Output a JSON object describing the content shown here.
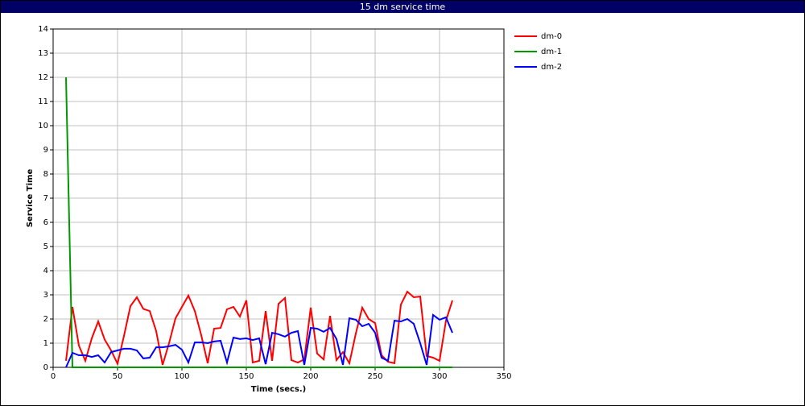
{
  "chart_data": {
    "type": "line",
    "title": "15 dm service time",
    "xlabel": "Time (secs.)",
    "ylabel": "Service Time",
    "x": [
      10,
      15,
      20,
      25,
      30,
      35,
      40,
      45,
      50,
      55,
      60,
      65,
      70,
      75,
      80,
      85,
      90,
      95,
      100,
      105,
      110,
      115,
      120,
      125,
      130,
      135,
      140,
      145,
      150,
      155,
      160,
      165,
      170,
      175,
      180,
      185,
      190,
      195,
      200,
      205,
      210,
      215,
      220,
      225,
      230,
      235,
      240,
      245,
      250,
      255,
      260,
      265,
      270,
      275,
      280,
      285,
      290,
      295,
      300,
      305,
      310
    ],
    "series": [
      {
        "name": "dm-0",
        "color": "#ff0000",
        "values": [
          0.27,
          2.5,
          0.9,
          0.27,
          1.2,
          1.9,
          1.15,
          0.7,
          0.15,
          1.3,
          2.53,
          2.9,
          2.42,
          2.33,
          1.5,
          0.1,
          1.0,
          2.03,
          2.5,
          2.97,
          2.33,
          1.33,
          0.17,
          1.6,
          1.63,
          2.4,
          2.5,
          2.1,
          2.77,
          0.2,
          0.27,
          2.33,
          0.27,
          2.63,
          2.87,
          0.3,
          0.2,
          0.33,
          2.47,
          0.57,
          0.33,
          2.13,
          0.3,
          0.63,
          0.17,
          1.4,
          2.47,
          2.0,
          1.83,
          0.5,
          0.23,
          0.17,
          2.6,
          3.13,
          2.9,
          2.93,
          0.47,
          0.4,
          0.27,
          1.93,
          2.77
        ]
      },
      {
        "name": "dm-1",
        "color": "#009900",
        "values": [
          12,
          0,
          0,
          0,
          0,
          0,
          0,
          0,
          0,
          0,
          0,
          0,
          0,
          0,
          0,
          0,
          0,
          0,
          0,
          0,
          0,
          0,
          0,
          0,
          0,
          0,
          0,
          0,
          0,
          0,
          0,
          0,
          0,
          0,
          0,
          0,
          0,
          0,
          0,
          0,
          0,
          0,
          0,
          0,
          0,
          0,
          0,
          0,
          0,
          0,
          0,
          0,
          0,
          0,
          0,
          0,
          0,
          0,
          0,
          0,
          0
        ]
      },
      {
        "name": "dm-2",
        "color": "#0000ff",
        "values": [
          0,
          0.6,
          0.5,
          0.5,
          0.43,
          0.5,
          0.2,
          0.63,
          0.7,
          0.77,
          0.77,
          0.7,
          0.37,
          0.4,
          0.83,
          0.83,
          0.87,
          0.93,
          0.73,
          0.2,
          1.03,
          1.03,
          1.0,
          1.07,
          1.1,
          0.2,
          1.23,
          1.17,
          1.2,
          1.13,
          1.2,
          0.13,
          1.43,
          1.37,
          1.27,
          1.43,
          1.5,
          0.1,
          1.63,
          1.6,
          1.47,
          1.63,
          1.17,
          0.1,
          2.03,
          1.97,
          1.7,
          1.8,
          1.43,
          0.4,
          0.27,
          1.93,
          1.9,
          2.0,
          1.8,
          1.0,
          0.1,
          2.17,
          1.97,
          2.07,
          1.43
        ]
      }
    ],
    "xlim": [
      0,
      350
    ],
    "xticks": [
      0,
      50,
      100,
      150,
      200,
      250,
      300,
      350
    ],
    "ylim": [
      0,
      14
    ],
    "yticks": [
      0,
      1,
      2,
      3,
      4,
      5,
      6,
      7,
      8,
      9,
      10,
      11,
      12,
      13,
      14
    ],
    "grid": true,
    "legend": "right"
  }
}
